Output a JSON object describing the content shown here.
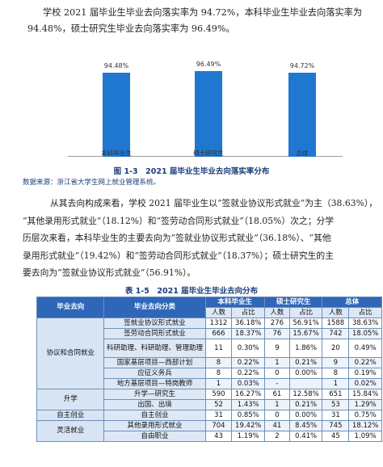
{
  "para1": {
    "line1": "学校 2021 届毕业生毕业去向落实率为 94.72%，本科毕业生毕业去向落实率为",
    "line2": "94.48%，硕士研究生毕业去向落实率为 96.49%。"
  },
  "figure": {
    "caption": "图 1-3　2021 届毕业生毕业去向落实率分布",
    "source": "数据来源：浙江省大学生网上就业管理系统。"
  },
  "chart_data": {
    "type": "bar",
    "categories": [
      "本科毕业生",
      "硕士研究生",
      "总体"
    ],
    "values": [
      94.48,
      96.49,
      94.72
    ],
    "value_labels": [
      "94.48%",
      "96.49%",
      "94.72%"
    ],
    "ylim": [
      0,
      100
    ],
    "grid": false,
    "bar_color": "#1f77d0"
  },
  "para2": {
    "lines": [
      "从其去向构成来看，学校 2021 届毕业生以“签就业协议形式就业”为主（38.63%），",
      "“其他录用形式就业”（18.12%）和“签劳动合同形式就业”（18.05%）次之；分学",
      "历层次来看，本科毕业生的主要去向为“签就业协议形式就业”（36.18%）、“其他",
      "录用形式就业”（19.42%）和“签劳动合同形式就业”（18.37%）；硕士研究生的主",
      "要去向为“签就业协议形式就业”（56.91%）。"
    ]
  },
  "table": {
    "caption": "表 1-5　2021 届毕业生毕业去向分布",
    "headers": {
      "direction": "毕业去向",
      "category": "毕业去向分类",
      "groups": [
        "本科毕业生",
        "硕士研究生",
        "总体"
      ],
      "sub": [
        "人数",
        "占比"
      ]
    },
    "groups": [
      {
        "name": "协议和合同就业",
        "rows": [
          {
            "label": "签就业协议形式就业",
            "cells": [
              "1312",
              "36.18%",
              "276",
              "56.91%",
              "1588",
              "38.63%"
            ]
          },
          {
            "label": "签劳动合同形式就业",
            "cells": [
              "666",
              "18.37%",
              "76",
              "15.67%",
              "742",
              "18.05%"
            ]
          },
          {
            "label": "科研助理、科研助理、管理助理",
            "cells": [
              "11",
              "0.30%",
              "9",
              "1.86%",
              "20",
              "0.49%"
            ]
          },
          {
            "label": "国家基层项目—西部计划",
            "cells": [
              "8",
              "0.22%",
              "1",
              "0.21%",
              "9",
              "0.22%"
            ]
          },
          {
            "label": "应征义务兵",
            "cells": [
              "8",
              "0.22%",
              "0",
              "0.00%",
              "8",
              "0.19%"
            ]
          },
          {
            "label": "地方基层项目—特岗教师",
            "cells": [
              "1",
              "0.03%",
              "-",
              "",
              "1",
              "0.02%"
            ]
          }
        ]
      },
      {
        "name": "升学",
        "rows": [
          {
            "label": "升学—研究生",
            "cells": [
              "590",
              "16.27%",
              "61",
              "12.58%",
              "651",
              "15.84%"
            ]
          },
          {
            "label": "出国、出境",
            "cells": [
              "52",
              "1.43%",
              "1",
              "0.21%",
              "53",
              "1.29%"
            ]
          }
        ]
      },
      {
        "name": "自主创业",
        "rows": [
          {
            "label": "自主创业",
            "cells": [
              "31",
              "0.85%",
              "0",
              "0.00%",
              "31",
              "0.75%"
            ]
          }
        ]
      },
      {
        "name": "灵活就业",
        "rows": [
          {
            "label": "其他录用形式就业",
            "cells": [
              "704",
              "19.42%",
              "41",
              "8.45%",
              "745",
              "18.12%"
            ]
          },
          {
            "label": "自由职业",
            "cells": [
              "43",
              "1.19%",
              "2",
              "0.41%",
              "45",
              "1.09%"
            ]
          }
        ]
      }
    ]
  },
  "colors": {
    "header_bg": "#2f66b8",
    "subheader_bg": "#dde8f6",
    "caption": "#1a3d78"
  }
}
